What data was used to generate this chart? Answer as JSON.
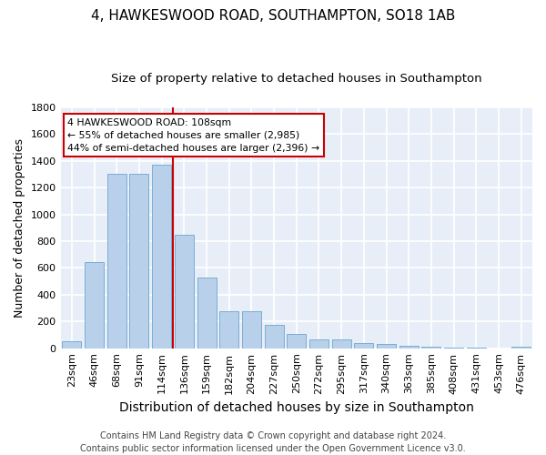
{
  "title": "4, HAWKESWOOD ROAD, SOUTHAMPTON, SO18 1AB",
  "subtitle": "Size of property relative to detached houses in Southampton",
  "xlabel": "Distribution of detached houses by size in Southampton",
  "ylabel": "Number of detached properties",
  "categories": [
    "23sqm",
    "46sqm",
    "68sqm",
    "91sqm",
    "114sqm",
    "136sqm",
    "159sqm",
    "182sqm",
    "204sqm",
    "227sqm",
    "250sqm",
    "272sqm",
    "295sqm",
    "317sqm",
    "340sqm",
    "363sqm",
    "385sqm",
    "408sqm",
    "431sqm",
    "453sqm",
    "476sqm"
  ],
  "values": [
    55,
    645,
    1300,
    1300,
    1370,
    845,
    525,
    275,
    275,
    175,
    105,
    65,
    65,
    38,
    35,
    18,
    10,
    8,
    2,
    0,
    10
  ],
  "bar_color": "#b8d0ea",
  "bar_edge_color": "#7aadd4",
  "bg_color": "#e8eef8",
  "grid_color": "#ffffff",
  "vline_color": "#cc0000",
  "annotation_text": "4 HAWKESWOOD ROAD: 108sqm\n← 55% of detached houses are smaller (2,985)\n44% of semi-detached houses are larger (2,396) →",
  "annotation_box_color": "#ffffff",
  "annotation_box_edge": "#cc0000",
  "footer": "Contains HM Land Registry data © Crown copyright and database right 2024.\nContains public sector information licensed under the Open Government Licence v3.0.",
  "ylim": [
    0,
    1800
  ],
  "title_fontsize": 11,
  "subtitle_fontsize": 9.5,
  "xlabel_fontsize": 10,
  "ylabel_fontsize": 9,
  "tick_fontsize": 8,
  "footer_fontsize": 7,
  "vline_index": 4
}
